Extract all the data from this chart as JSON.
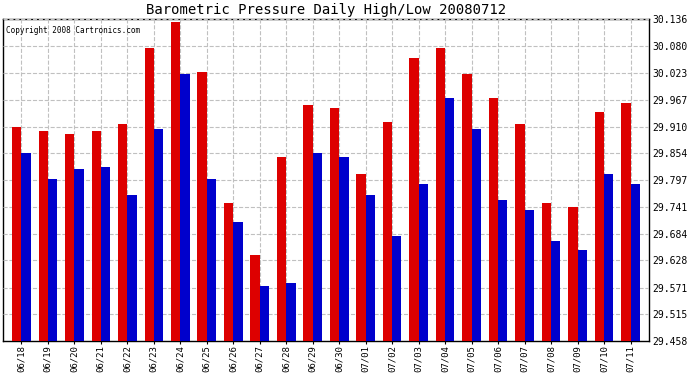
{
  "title": "Barometric Pressure Daily High/Low 20080712",
  "copyright": "Copyright 2008 Cartronics.com",
  "background_color": "#ffffff",
  "bar_high_color": "#dd0000",
  "bar_low_color": "#0000cc",
  "grid_color": "#c0c0c0",
  "ylim": [
    29.458,
    30.136
  ],
  "yticks": [
    29.458,
    29.515,
    29.571,
    29.628,
    29.684,
    29.741,
    29.797,
    29.854,
    29.91,
    29.967,
    30.023,
    30.08,
    30.136
  ],
  "dates": [
    "06/18",
    "06/19",
    "06/20",
    "06/21",
    "06/22",
    "06/23",
    "06/24",
    "06/25",
    "06/26",
    "06/27",
    "06/28",
    "06/29",
    "06/30",
    "07/01",
    "07/02",
    "07/03",
    "07/04",
    "07/05",
    "07/06",
    "07/07",
    "07/08",
    "07/09",
    "07/10",
    "07/11"
  ],
  "highs": [
    29.91,
    29.9,
    29.895,
    29.9,
    29.915,
    30.075,
    30.13,
    30.025,
    29.75,
    29.64,
    29.845,
    29.955,
    29.95,
    29.81,
    29.92,
    30.055,
    30.075,
    30.02,
    29.97,
    29.915,
    29.75,
    29.74,
    29.94,
    29.96
  ],
  "lows": [
    29.855,
    29.8,
    29.82,
    29.825,
    29.765,
    29.905,
    30.02,
    29.8,
    29.71,
    29.575,
    29.58,
    29.855,
    29.845,
    29.765,
    29.68,
    29.79,
    29.97,
    29.905,
    29.755,
    29.735,
    29.67,
    29.65,
    29.81,
    29.79
  ]
}
